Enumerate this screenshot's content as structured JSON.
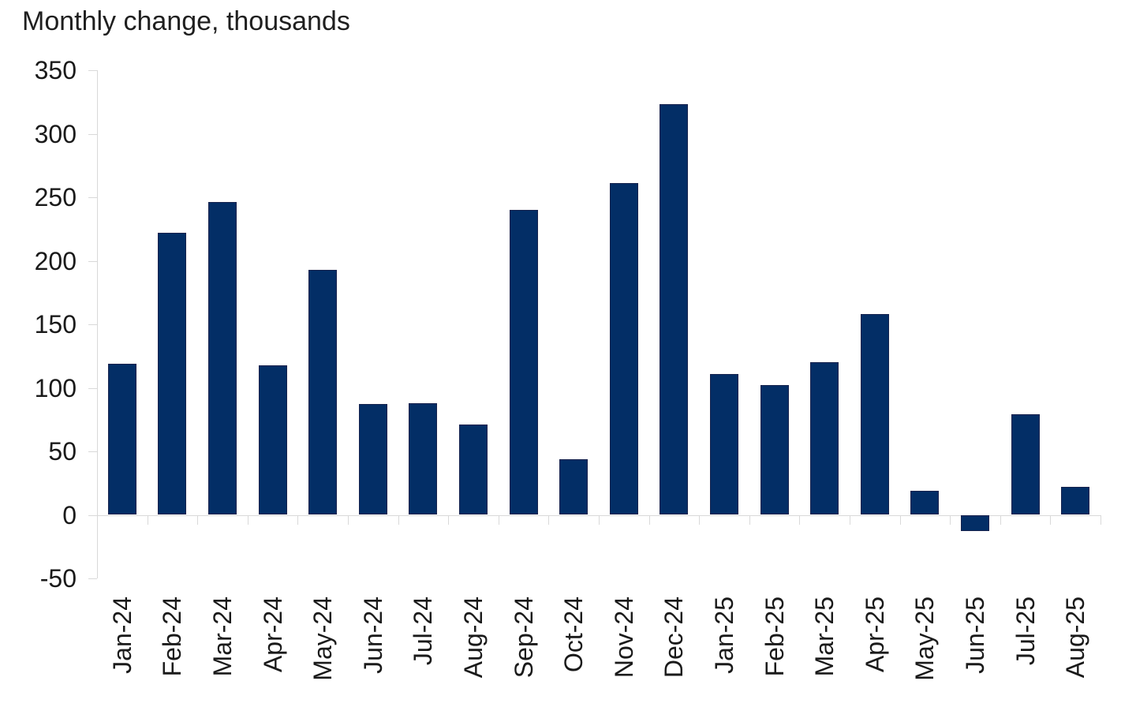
{
  "colors": {
    "bar_fill": "#032e66",
    "bar_border": "#16224d",
    "axis_line": "#d9d9d9",
    "text": "#1a1a1a",
    "background": "#ffffff"
  },
  "chart_data": {
    "type": "bar",
    "title": "Monthly change, thousands",
    "xlabel": "",
    "ylabel": "",
    "categories": [
      "Jan-24",
      "Feb-24",
      "Mar-24",
      "Apr-24",
      "May-24",
      "Jun-24",
      "Jul-24",
      "Aug-24",
      "Sep-24",
      "Oct-24",
      "Nov-24",
      "Dec-24",
      "Jan-25",
      "Feb-25",
      "Mar-25",
      "Apr-25",
      "May-25",
      "Jun-25",
      "Jul-25",
      "Aug-25"
    ],
    "values": [
      119,
      222,
      246,
      118,
      193,
      87,
      88,
      71,
      240,
      44,
      261,
      323,
      111,
      102,
      120,
      158,
      19,
      -13,
      79,
      22
    ],
    "ylim": [
      -50,
      350
    ],
    "yticks": [
      350,
      300,
      250,
      200,
      150,
      100,
      50,
      0,
      -50
    ],
    "grid": false,
    "legend_position": "none",
    "x_label_rotation_degrees": 90
  }
}
